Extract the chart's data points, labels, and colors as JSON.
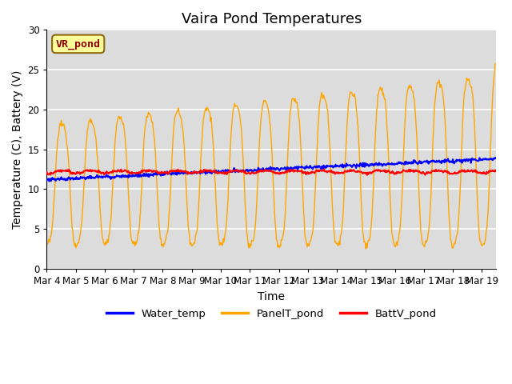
{
  "title": "Vaira Pond Temperatures",
  "xlabel": "Time",
  "ylabel": "Temperature (C), Battery (V)",
  "ylim": [
    0,
    30
  ],
  "x_tick_labels": [
    "Mar 4",
    "Mar 5",
    "Mar 6",
    "Mar 7",
    "Mar 8",
    "Mar 9",
    "Mar 10",
    "Mar 11",
    "Mar 12",
    "Mar 13",
    "Mar 14",
    "Mar 15",
    "Mar 16",
    "Mar 17",
    "Mar 18",
    "Mar 19"
  ],
  "annotation_text": "VR_pond",
  "annotation_color": "#8B0000",
  "annotation_bg": "#FFFF99",
  "water_temp_color": "#0000FF",
  "panel_temp_color": "#FFA500",
  "batt_color": "#FF0000",
  "legend_labels": [
    "Water_temp",
    "PanelT_pond",
    "BattV_pond"
  ],
  "background_color": "#dcdcdc",
  "title_fontsize": 13,
  "axis_label_fontsize": 10,
  "tick_fontsize": 8.5
}
